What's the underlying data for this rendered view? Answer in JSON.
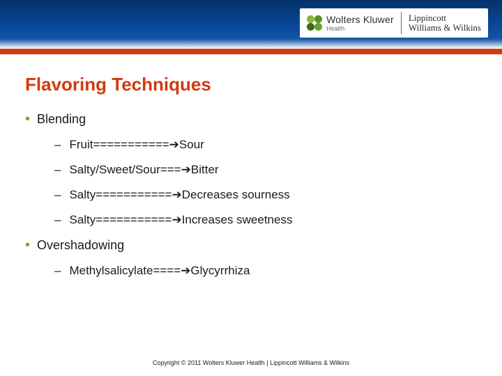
{
  "brand": {
    "wk_name": "Wolters Kluwer",
    "wk_sub": "Health",
    "lww_line1": "Lippincott",
    "lww_line2": "Williams & Wilkins"
  },
  "title": "Flavoring Techniques",
  "bullets": {
    "b1a": "Blending",
    "s1": "Fruit===========➔Sour",
    "s2": "Salty/Sweet/Sour===➔Bitter",
    "s3": "Salty===========➔Decreases sourness",
    "s4": "Salty===========➔Increases sweetness",
    "b1b": "Overshadowing",
    "s5": "Methylsalicylate====➔Glycyrrhiza"
  },
  "footer": "Copyright © 2011 Wolters Kluwer Health | Lippincott Williams & Wilkins",
  "colors": {
    "accent": "#d23a0e",
    "bullet_green": "#7aa61f",
    "header_top": "#06326a",
    "header_mid": "#0a4a9e",
    "text": "#1a1a1a"
  }
}
